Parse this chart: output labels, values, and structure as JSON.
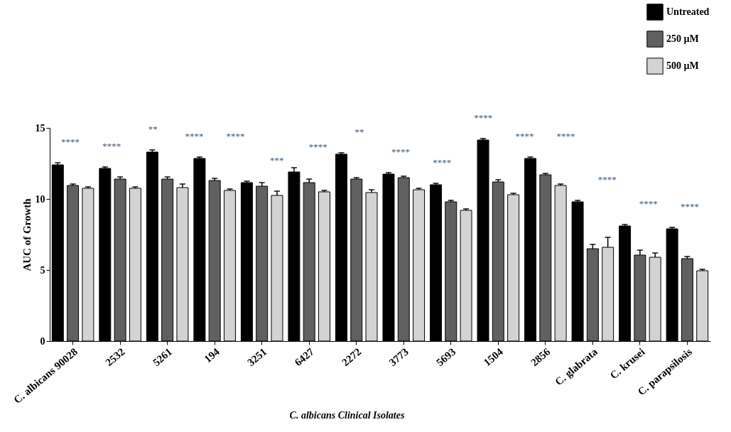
{
  "chart_data": {
    "type": "bar",
    "ylabel": "AUC of Growth",
    "categories": [
      "C. albicans 90028",
      "2532",
      "5261",
      "194",
      "3251",
      "6427",
      "2272",
      "3773",
      "5693",
      "1504",
      "2856",
      "C. glabrata",
      "C. krusei",
      "C. parapsilosis"
    ],
    "series": [
      {
        "name": "Untreated",
        "color": "#000000",
        "values": [
          12.4,
          12.15,
          13.3,
          12.85,
          11.15,
          11.9,
          13.15,
          11.75,
          11.0,
          14.15,
          12.85,
          9.8,
          8.1,
          7.9
        ],
        "errors": [
          0.15,
          0.1,
          0.15,
          0.1,
          0.1,
          0.3,
          0.1,
          0.1,
          0.1,
          0.1,
          0.1,
          0.1,
          0.1,
          0.1
        ]
      },
      {
        "name": "250 µM",
        "color": "#606060",
        "values": [
          10.95,
          11.4,
          11.4,
          11.3,
          10.9,
          11.15,
          11.4,
          11.5,
          9.8,
          11.2,
          11.7,
          6.5,
          6.05,
          5.8
        ],
        "errors": [
          0.1,
          0.15,
          0.15,
          0.15,
          0.25,
          0.25,
          0.1,
          0.1,
          0.1,
          0.15,
          0.1,
          0.3,
          0.35,
          0.15
        ]
      },
      {
        "name": "500 µM",
        "color": "#d3d3d3",
        "values": [
          10.75,
          10.75,
          10.8,
          10.6,
          10.25,
          10.5,
          10.45,
          10.65,
          9.2,
          10.3,
          10.95,
          6.6,
          5.9,
          4.95
        ],
        "errors": [
          0.1,
          0.1,
          0.25,
          0.1,
          0.3,
          0.1,
          0.2,
          0.1,
          0.1,
          0.1,
          0.1,
          0.7,
          0.3,
          0.1
        ]
      }
    ],
    "ylim": [
      0,
      15
    ],
    "yticks": [
      0,
      5,
      10,
      15
    ],
    "grid": false,
    "legend": "top right",
    "annotations": [
      "****",
      "****",
      "**",
      "****",
      "****",
      "***",
      "****",
      "**",
      "****",
      "****",
      "****",
      "****",
      "****",
      "****",
      "****",
      "****",
      "C. albicans Clinical Isolates"
    ]
  }
}
